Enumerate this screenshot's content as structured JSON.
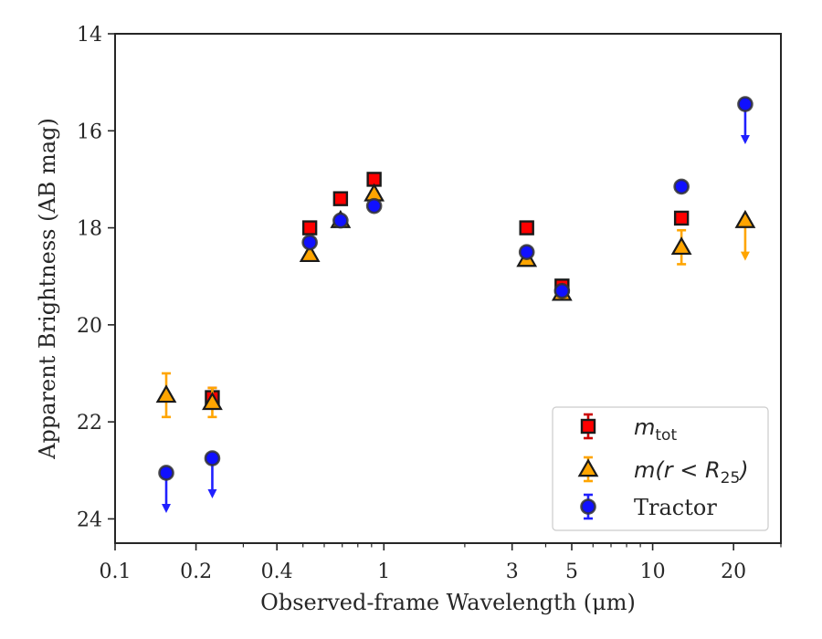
{
  "chart_data": {
    "type": "scatter",
    "x_scale": "log",
    "y_inverted": true,
    "xlim": [
      0.1,
      30
    ],
    "ylim": [
      24.5,
      14
    ],
    "xlabel": "Observed-frame Wavelength (μm)",
    "ylabel": "Apparent Brightness (AB mag)",
    "x_ticks": [
      0.1,
      0.2,
      0.4,
      1,
      3,
      5,
      10,
      20
    ],
    "x_tick_labels": [
      "0.1",
      "0.2",
      "0.4",
      "1",
      "3",
      "5",
      "10",
      "20"
    ],
    "y_ticks": [
      14,
      16,
      18,
      20,
      22,
      24
    ],
    "y_tick_labels": [
      "14",
      "16",
      "18",
      "20",
      "22",
      "24"
    ],
    "grid": false,
    "legend_position": "lower-right",
    "series": [
      {
        "name": "m_tot",
        "legend_label": "m",
        "legend_sub": "tot",
        "marker": "square",
        "color": "#ff0000",
        "error_color": "#cc0000",
        "points": [
          {
            "x": 0.23,
            "y": 21.5,
            "err": 0.2
          },
          {
            "x": 0.53,
            "y": 18.0,
            "err": 0.05
          },
          {
            "x": 0.69,
            "y": 17.4,
            "err": 0.05
          },
          {
            "x": 0.92,
            "y": 17.0,
            "err": 0.05
          },
          {
            "x": 3.4,
            "y": 18.0,
            "err": 0.05
          },
          {
            "x": 4.6,
            "y": 19.2,
            "err": 0.05
          },
          {
            "x": 12.8,
            "y": 17.8,
            "err": 0.05
          }
        ]
      },
      {
        "name": "m(r < R25)",
        "legend_label": "m(r < R",
        "legend_sub": "25",
        "legend_suffix": ")",
        "marker": "triangle",
        "color": "#ffa500",
        "error_color": "#ffa500",
        "points": [
          {
            "x": 0.155,
            "y": 21.45,
            "err": 0.45
          },
          {
            "x": 0.23,
            "y": 21.6,
            "err": 0.3
          },
          {
            "x": 0.53,
            "y": 18.55,
            "err": 0.05
          },
          {
            "x": 0.69,
            "y": 17.85,
            "err": 0.05
          },
          {
            "x": 0.92,
            "y": 17.3,
            "err": 0.05
          },
          {
            "x": 3.4,
            "y": 18.65,
            "err": 0.05
          },
          {
            "x": 4.6,
            "y": 19.35,
            "err": 0.05
          },
          {
            "x": 12.8,
            "y": 18.4,
            "err": 0.35
          },
          {
            "x": 22.1,
            "y": 17.85,
            "upper_limit": true
          }
        ]
      },
      {
        "name": "Tractor",
        "legend_label": "Tractor",
        "marker": "circle",
        "color": "#1010ff",
        "error_color": "#2020ff",
        "points": [
          {
            "x": 0.155,
            "y": 23.05,
            "upper_limit": true
          },
          {
            "x": 0.23,
            "y": 22.75,
            "upper_limit": true
          },
          {
            "x": 0.53,
            "y": 18.3,
            "err": 0.05
          },
          {
            "x": 0.69,
            "y": 17.85,
            "err": 0.05
          },
          {
            "x": 0.92,
            "y": 17.55,
            "err": 0.05
          },
          {
            "x": 3.4,
            "y": 18.5,
            "err": 0.05
          },
          {
            "x": 4.6,
            "y": 19.3,
            "err": 0.05
          },
          {
            "x": 12.8,
            "y": 17.15,
            "err": 0.05
          },
          {
            "x": 22.1,
            "y": 15.45,
            "upper_limit": true
          }
        ]
      }
    ]
  }
}
